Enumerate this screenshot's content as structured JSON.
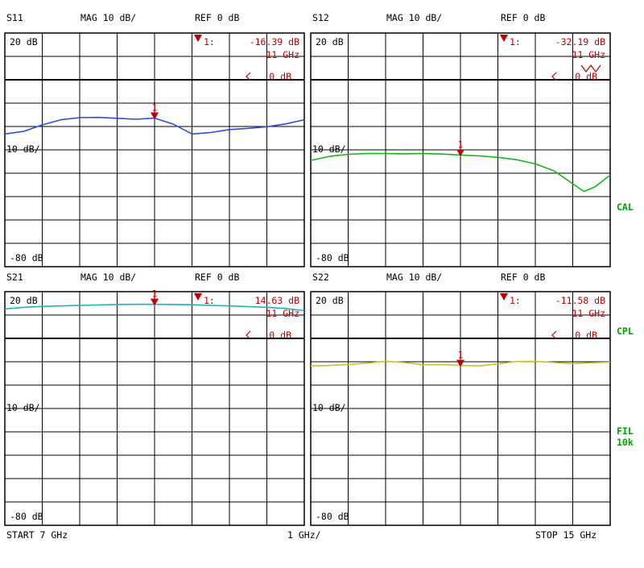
{
  "chart_data": [
    {
      "type": "line",
      "channel_label": "S11",
      "scale_label": "MAG 10 dB/",
      "ref_label": "REF 0 dB",
      "top_tick": "20 dB",
      "mid_tick": "10 dB/",
      "bottom_tick": "-80 dB",
      "ylim": [
        -80,
        20
      ],
      "xlim_ghz": [
        7,
        15
      ],
      "marker_number": "1",
      "marker_readout": "1:",
      "marker_value": "-16.39 dB",
      "marker_freq": "11 GHz",
      "ref_arrow": "0 dB",
      "trace_color": "#2f4fd2",
      "series": [
        {
          "x": [
            7.0,
            7.5,
            8.0,
            8.5,
            9.0,
            9.5,
            10.0,
            10.5,
            11.0,
            11.5,
            12.0,
            12.5,
            13.0,
            13.5,
            14.0,
            14.5,
            15.0
          ],
          "values": [
            -23.2,
            -22.1,
            -19.3,
            -17.1,
            -16.2,
            -16.1,
            -16.5,
            -16.9,
            -16.4,
            -19.0,
            -23.2,
            -22.6,
            -21.3,
            -20.8,
            -20.1,
            -18.9,
            -17.1
          ]
        }
      ]
    },
    {
      "type": "line",
      "channel_label": "S12",
      "scale_label": "MAG 10 dB/",
      "ref_label": "REF 0 dB",
      "top_tick": "20 dB",
      "mid_tick": "10 dB/",
      "bottom_tick": "-80 dB",
      "ylim": [
        -80,
        20
      ],
      "xlim_ghz": [
        7,
        15
      ],
      "marker_number": "1",
      "marker_readout": "1:",
      "marker_value": "-32.19 dB",
      "marker_freq": "11 GHz",
      "ref_arrow": "0 dB",
      "trace_color": "#18b418",
      "series": [
        {
          "x": [
            7.0,
            7.5,
            8.0,
            8.5,
            9.0,
            9.5,
            10.0,
            10.5,
            11.0,
            11.5,
            12.0,
            12.5,
            13.0,
            13.5,
            14.0,
            14.3,
            14.6,
            15.0
          ],
          "values": [
            -34.5,
            -32.8,
            -31.9,
            -31.6,
            -31.6,
            -31.7,
            -31.6,
            -31.8,
            -32.2,
            -32.6,
            -33.2,
            -34.2,
            -36.0,
            -39.0,
            -44.5,
            -47.8,
            -45.8,
            -40.8
          ]
        }
      ]
    },
    {
      "type": "line",
      "channel_label": "S21",
      "scale_label": "MAG 10 dB/",
      "ref_label": "REF 0 dB",
      "top_tick": "20 dB",
      "mid_tick": "10 dB/",
      "bottom_tick": "-80 dB",
      "ylim": [
        -80,
        20
      ],
      "xlim_ghz": [
        7,
        15
      ],
      "marker_number": "1",
      "marker_readout": "1:",
      "marker_value": "14.63 dB",
      "marker_freq": "11 GHz",
      "ref_arrow": "0 dB",
      "trace_color": "#21b2b2",
      "series": [
        {
          "x": [
            7.0,
            7.5,
            8.0,
            8.5,
            9.0,
            9.5,
            10.0,
            10.5,
            11.0,
            11.5,
            12.0,
            12.5,
            13.0,
            13.5,
            14.0,
            14.5,
            15.0
          ],
          "values": [
            12.6,
            13.3,
            13.7,
            13.9,
            14.1,
            14.3,
            14.5,
            14.6,
            14.6,
            14.5,
            14.4,
            14.1,
            13.9,
            13.6,
            13.3,
            12.8,
            11.9
          ]
        }
      ]
    },
    {
      "type": "line",
      "channel_label": "S22",
      "scale_label": "MAG 10 dB/",
      "ref_label": "REF 0 dB",
      "top_tick": "20 dB",
      "mid_tick": "10 dB/",
      "bottom_tick": "-80 dB",
      "ylim": [
        -80,
        20
      ],
      "xlim_ghz": [
        7,
        15
      ],
      "marker_number": "1",
      "marker_readout": "1:",
      "marker_value": "-11.58 dB",
      "marker_freq": "11 GHz",
      "ref_arrow": "0 dB",
      "trace_color": "#c4c428",
      "series": [
        {
          "x": [
            7.0,
            7.5,
            8.0,
            8.5,
            9.0,
            9.5,
            10.0,
            10.5,
            11.0,
            11.5,
            12.0,
            12.5,
            13.0,
            13.5,
            14.0,
            14.5,
            15.0
          ],
          "values": [
            -11.8,
            -11.6,
            -11.2,
            -10.6,
            -9.8,
            -10.3,
            -11.3,
            -11.2,
            -11.6,
            -11.8,
            -10.9,
            -9.9,
            -9.8,
            -10.3,
            -10.8,
            -10.4,
            -10.2
          ]
        }
      ]
    }
  ],
  "status": {
    "cal_label": "CAL",
    "cpl_label": "CPL",
    "fil_label": "FIL",
    "fil_value": "10k",
    "color": "#00a000"
  },
  "footer": {
    "start": "START  7 GHz",
    "span": "1 GHz/",
    "stop": "STOP 15 GHz"
  },
  "colors": {
    "grid": "#000000",
    "marker": "#c00000",
    "annotation": "#c00000"
  }
}
